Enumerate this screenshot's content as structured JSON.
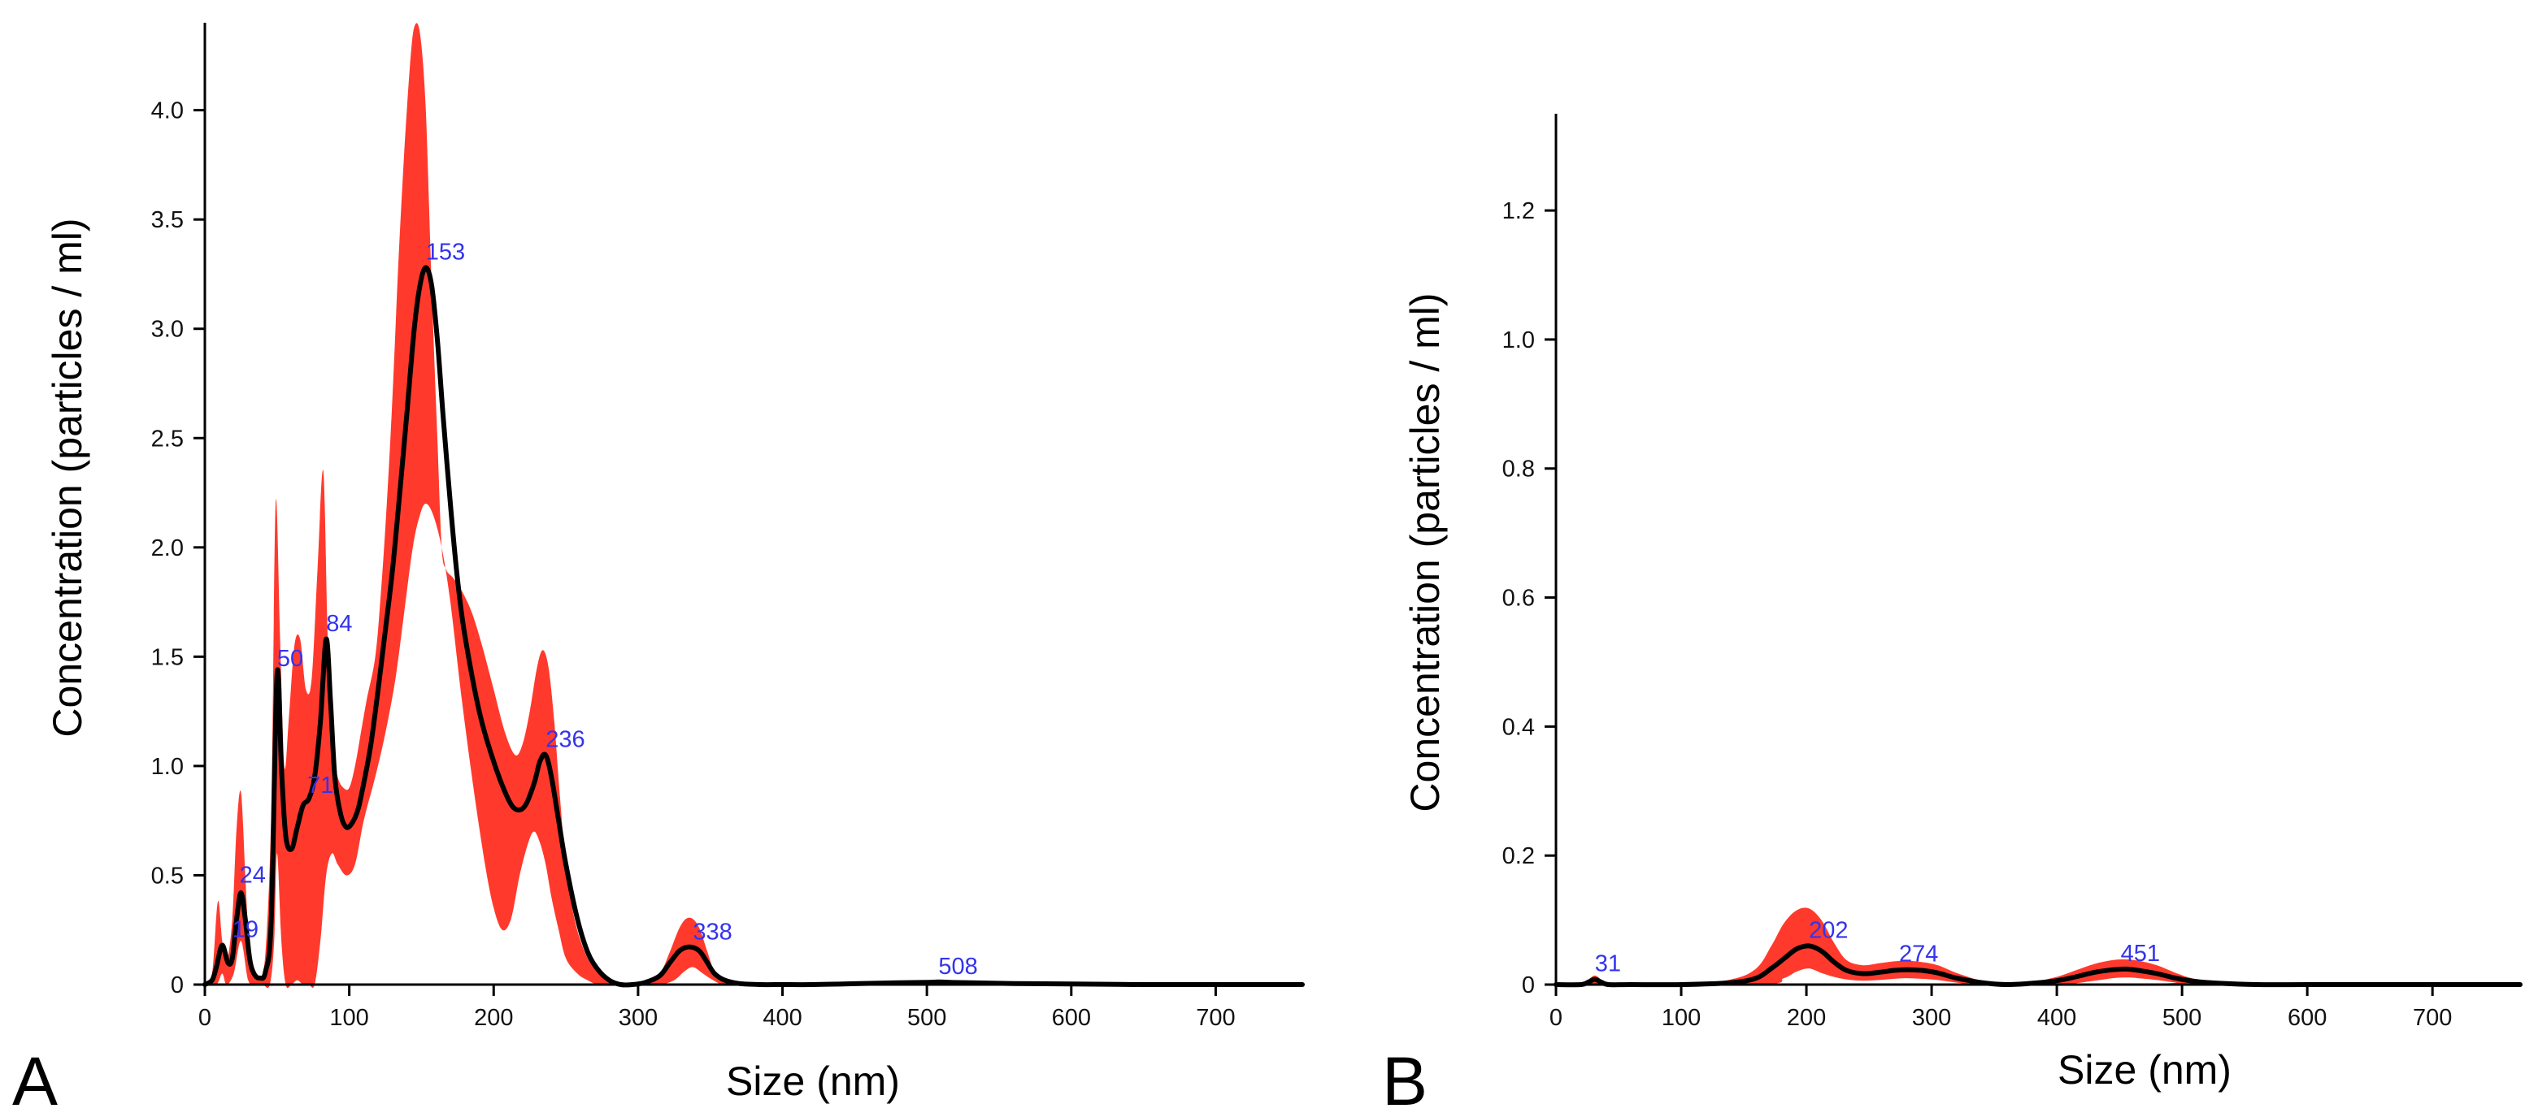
{
  "colors": {
    "band": "#ff3a2d",
    "mean_line": "#000000",
    "peak_label": "#3333ee",
    "axis": "#000000"
  },
  "chart_data": [
    {
      "panel": "A",
      "type": "area",
      "xlabel": "Size (nm)",
      "ylabel": "Concentration (particles / ml)",
      "xlim": [
        0,
        760
      ],
      "ylim": [
        0,
        4.4
      ],
      "x_ticks": [
        0,
        100,
        200,
        300,
        400,
        500,
        600,
        700
      ],
      "y_ticks": [
        0,
        0.5,
        1.0,
        1.5,
        2.0,
        2.5,
        3.0,
        3.5,
        4.0
      ],
      "y_tick_labels": [
        "0",
        "0.5",
        "1.0",
        "1.5",
        "2.0",
        "2.5",
        "3.0",
        "3.5",
        "4.0"
      ],
      "series": [
        {
          "name": "mean",
          "x": [
            0,
            5,
            8,
            12,
            16,
            19,
            22,
            25,
            28,
            31,
            34,
            38,
            42,
            46,
            50,
            53,
            56,
            60,
            64,
            68,
            72,
            76,
            80,
            84,
            87,
            90,
            94,
            98,
            102,
            106,
            110,
            115,
            120,
            125,
            130,
            135,
            140,
            145,
            149,
            153,
            157,
            161,
            165,
            170,
            175,
            180,
            190,
            200,
            210,
            216,
            222,
            228,
            232,
            236,
            240,
            245,
            250,
            258,
            265,
            272,
            280,
            288,
            296,
            305,
            315,
            322,
            328,
            333,
            338,
            343,
            348,
            353,
            360,
            370,
            385,
            400,
            420,
            450,
            480,
            500,
            508,
            516,
            530,
            560,
            600,
            650,
            700,
            760
          ],
          "values": [
            0.0,
            0.02,
            0.08,
            0.18,
            0.1,
            0.12,
            0.3,
            0.42,
            0.3,
            0.12,
            0.05,
            0.03,
            0.06,
            0.3,
            1.42,
            1.0,
            0.68,
            0.62,
            0.72,
            0.82,
            0.85,
            0.95,
            1.2,
            1.58,
            1.3,
            0.95,
            0.78,
            0.72,
            0.74,
            0.8,
            0.92,
            1.1,
            1.35,
            1.62,
            1.9,
            2.25,
            2.62,
            3.0,
            3.2,
            3.28,
            3.2,
            2.95,
            2.6,
            2.2,
            1.85,
            1.6,
            1.25,
            1.02,
            0.85,
            0.8,
            0.82,
            0.92,
            1.02,
            1.05,
            0.95,
            0.75,
            0.55,
            0.3,
            0.15,
            0.07,
            0.02,
            0.0,
            0.0,
            0.01,
            0.04,
            0.1,
            0.15,
            0.17,
            0.17,
            0.15,
            0.1,
            0.05,
            0.02,
            0.005,
            0.0,
            0.0,
            0.0,
            0.004,
            0.008,
            0.01,
            0.012,
            0.01,
            0.008,
            0.005,
            0.003,
            0.0,
            0.0,
            0.0
          ]
        },
        {
          "name": "upper",
          "x": [
            0,
            5,
            9,
            12,
            15,
            19,
            22,
            25,
            28,
            31,
            34,
            38,
            42,
            46,
            49,
            52,
            55,
            58,
            62,
            66,
            70,
            74,
            78,
            82,
            85,
            88,
            92,
            96,
            100,
            104,
            108,
            112,
            118,
            122,
            126,
            130,
            134,
            138,
            142,
            145,
            149,
            153,
            157,
            161,
            164,
            167,
            172,
            178,
            185,
            192,
            200,
            208,
            215,
            220,
            225,
            230,
            234,
            238,
            242,
            246,
            250,
            256,
            263,
            270,
            278,
            286,
            295,
            305,
            315,
            322,
            328,
            333,
            338,
            343,
            348,
            353,
            360,
            370,
            385,
            400,
            420,
            450,
            480,
            500,
            508,
            516,
            530,
            560,
            600,
            650,
            700,
            760
          ],
          "values": [
            0.0,
            0.05,
            0.38,
            0.2,
            0.1,
            0.3,
            0.72,
            0.88,
            0.5,
            0.12,
            0.05,
            0.03,
            0.15,
            0.8,
            2.2,
            1.6,
            1.0,
            1.2,
            1.55,
            1.58,
            1.35,
            1.4,
            1.9,
            2.35,
            1.6,
            1.1,
            0.95,
            0.9,
            0.9,
            1.0,
            1.15,
            1.3,
            1.5,
            1.8,
            2.2,
            2.7,
            3.3,
            3.8,
            4.2,
            4.38,
            4.35,
            4.0,
            3.2,
            2.5,
            2.0,
            1.9,
            1.86,
            1.8,
            1.7,
            1.55,
            1.35,
            1.15,
            1.05,
            1.1,
            1.25,
            1.45,
            1.53,
            1.45,
            1.2,
            0.85,
            0.55,
            0.3,
            0.15,
            0.07,
            0.02,
            0.0,
            0.0,
            0.01,
            0.05,
            0.15,
            0.25,
            0.3,
            0.3,
            0.25,
            0.15,
            0.06,
            0.02,
            0.005,
            0.0,
            0.0,
            0.0,
            0.005,
            0.01,
            0.013,
            0.015,
            0.013,
            0.01,
            0.006,
            0.003,
            0.0,
            0.0,
            0.0
          ]
        },
        {
          "name": "lower",
          "x": [
            0,
            8,
            12,
            15,
            20,
            25,
            30,
            35,
            40,
            45,
            48,
            50,
            53,
            56,
            60,
            64,
            68,
            72,
            76,
            80,
            84,
            88,
            92,
            98,
            104,
            110,
            118,
            125,
            132,
            138,
            144,
            149,
            153,
            158,
            164,
            170,
            178,
            186,
            194,
            200,
            206,
            212,
            218,
            224,
            228,
            232,
            236,
            240,
            245,
            250,
            258,
            265,
            272,
            280,
            290,
            300,
            315,
            325,
            332,
            338,
            345,
            352,
            360,
            380,
            400,
            760
          ],
          "values": [
            0.0,
            0.0,
            0.05,
            0.0,
            0.05,
            0.2,
            0.02,
            0.0,
            0.0,
            0.0,
            0.2,
            0.6,
            0.2,
            0.0,
            0.0,
            0.02,
            0.0,
            0.0,
            0.0,
            0.2,
            0.5,
            0.6,
            0.55,
            0.5,
            0.55,
            0.75,
            0.95,
            1.15,
            1.4,
            1.7,
            2.0,
            2.15,
            2.2,
            2.15,
            2.0,
            1.75,
            1.3,
            0.9,
            0.55,
            0.35,
            0.25,
            0.3,
            0.5,
            0.65,
            0.7,
            0.65,
            0.55,
            0.4,
            0.25,
            0.12,
            0.05,
            0.02,
            0.0,
            0.0,
            0.0,
            0.0,
            0.0,
            0.02,
            0.06,
            0.08,
            0.05,
            0.02,
            0.0,
            0.0,
            0.0,
            0.0
          ]
        }
      ],
      "peak_labels": [
        {
          "x": 19,
          "y": 0.18,
          "text": "19"
        },
        {
          "x": 24,
          "y": 0.43,
          "text": "24"
        },
        {
          "x": 50,
          "y": 1.42,
          "text": "50"
        },
        {
          "x": 71,
          "y": 0.84,
          "text": "71"
        },
        {
          "x": 84,
          "y": 1.58,
          "text": "84"
        },
        {
          "x": 153,
          "y": 3.28,
          "text": "153"
        },
        {
          "x": 236,
          "y": 1.05,
          "text": "236"
        },
        {
          "x": 338,
          "y": 0.17,
          "text": "338"
        },
        {
          "x": 508,
          "y": 0.012,
          "text": "508"
        }
      ]
    },
    {
      "panel": "B",
      "type": "area",
      "xlabel": "Size (nm)",
      "ylabel": "Concentration (particles / ml)",
      "xlim": [
        0,
        770
      ],
      "ylim": [
        0,
        1.35
      ],
      "x_ticks": [
        0,
        100,
        200,
        300,
        400,
        500,
        600,
        700
      ],
      "y_ticks": [
        0,
        0.2,
        0.4,
        0.6,
        0.8,
        1.0,
        1.2
      ],
      "y_tick_labels": [
        "0",
        "0.2",
        "0.4",
        "0.6",
        "0.8",
        "1.0",
        "1.2"
      ],
      "series": [
        {
          "name": "mean",
          "x": [
            0,
            20,
            26,
            31,
            36,
            42,
            60,
            100,
            140,
            160,
            172,
            182,
            192,
            202,
            212,
            222,
            232,
            245,
            258,
            270,
            280,
            292,
            305,
            320,
            340,
            360,
            380,
            400,
            415,
            430,
            445,
            455,
            465,
            480,
            495,
            510,
            530,
            560,
            600,
            650,
            700,
            770
          ],
          "values": [
            0.0,
            0.0,
            0.004,
            0.008,
            0.004,
            0.0,
            0.0,
            0.0,
            0.003,
            0.01,
            0.025,
            0.04,
            0.055,
            0.06,
            0.052,
            0.035,
            0.022,
            0.017,
            0.019,
            0.022,
            0.023,
            0.022,
            0.018,
            0.01,
            0.003,
            0.0,
            0.002,
            0.006,
            0.012,
            0.019,
            0.023,
            0.024,
            0.022,
            0.017,
            0.01,
            0.005,
            0.002,
            0.0,
            0.0,
            0.0,
            0.0,
            0.0
          ]
        },
        {
          "name": "upper",
          "x": [
            0,
            20,
            26,
            31,
            36,
            42,
            60,
            100,
            140,
            160,
            172,
            182,
            192,
            202,
            212,
            222,
            232,
            245,
            258,
            270,
            280,
            292,
            305,
            320,
            340,
            360,
            380,
            400,
            415,
            430,
            445,
            455,
            465,
            480,
            495,
            510,
            530,
            560,
            600,
            650,
            700,
            770
          ],
          "values": [
            0.0,
            0.0,
            0.008,
            0.014,
            0.008,
            0.0,
            0.0,
            0.0,
            0.008,
            0.025,
            0.06,
            0.095,
            0.115,
            0.118,
            0.1,
            0.065,
            0.038,
            0.03,
            0.033,
            0.036,
            0.037,
            0.035,
            0.03,
            0.018,
            0.006,
            0.001,
            0.004,
            0.012,
            0.022,
            0.032,
            0.038,
            0.039,
            0.037,
            0.03,
            0.018,
            0.009,
            0.004,
            0.0,
            0.0,
            0.0,
            0.0,
            0.0
          ]
        },
        {
          "name": "lower",
          "x": [
            0,
            160,
            182,
            192,
            202,
            212,
            222,
            232,
            245,
            258,
            270,
            280,
            292,
            305,
            320,
            340,
            400,
            430,
            445,
            455,
            465,
            480,
            495,
            510,
            770
          ],
          "values": [
            0.0,
            0.0,
            0.01,
            0.02,
            0.025,
            0.018,
            0.012,
            0.008,
            0.006,
            0.007,
            0.009,
            0.01,
            0.009,
            0.007,
            0.003,
            0.0,
            0.0,
            0.006,
            0.01,
            0.011,
            0.01,
            0.007,
            0.003,
            0.001,
            0.0
          ]
        }
      ],
      "peak_labels": [
        {
          "x": 31,
          "y": 0.008,
          "text": "31"
        },
        {
          "x": 202,
          "y": 0.06,
          "text": "202"
        },
        {
          "x": 274,
          "y": 0.023,
          "text": "274"
        },
        {
          "x": 451,
          "y": 0.024,
          "text": "451"
        }
      ]
    }
  ]
}
